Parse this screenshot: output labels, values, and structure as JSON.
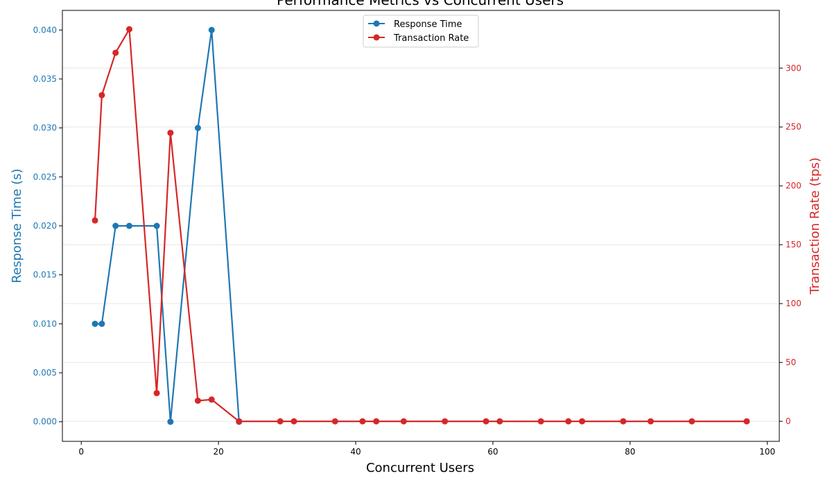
{
  "chart_data": {
    "type": "line",
    "title": "Performance Metrics vs Concurrent Users",
    "xlabel": "Concurrent Users",
    "xlim": [
      -2.75,
      101.75
    ],
    "xticks": [
      0,
      20,
      40,
      60,
      80,
      100
    ],
    "grid": true,
    "legend_placement": "top-center",
    "series": [
      {
        "name": "Response Time",
        "axis": "left",
        "color": "#1f77b4",
        "x": [
          2,
          3,
          5,
          7,
          11,
          13,
          17,
          19,
          23
        ],
        "y": [
          0.01,
          0.01,
          0.02,
          0.02,
          0.02,
          0.0,
          0.03,
          0.04,
          0.0
        ]
      },
      {
        "name": "Transaction Rate",
        "axis": "right",
        "color": "#d62728",
        "x": [
          2,
          3,
          5,
          7,
          11,
          13,
          17,
          19,
          23,
          29,
          31,
          37,
          41,
          43,
          47,
          53,
          59,
          61,
          67,
          71,
          73,
          79,
          83,
          89,
          97
        ],
        "y": [
          170.6,
          277,
          313,
          333,
          24,
          245,
          17.5,
          18.5,
          0,
          0,
          0,
          0,
          0,
          0,
          0,
          0,
          0,
          0,
          0,
          0,
          0,
          0,
          0,
          0,
          0
        ]
      }
    ],
    "y_left": {
      "label": "Response Time (s)",
      "color": "#1f77b4",
      "ylim": [
        -0.002,
        0.042
      ],
      "ticks": [
        0.0,
        0.005,
        0.01,
        0.015,
        0.02,
        0.025,
        0.03,
        0.035,
        0.04
      ],
      "tick_labels": [
        "0.000",
        "0.005",
        "0.010",
        "0.015",
        "0.020",
        "0.025",
        "0.030",
        "0.035",
        "0.040"
      ]
    },
    "y_right": {
      "label": "Transaction Rate (tps)",
      "color": "#d62728",
      "ylim": [
        -17,
        349
      ],
      "ticks": [
        0,
        50,
        100,
        150,
        200,
        250,
        300
      ],
      "tick_labels": [
        "0",
        "50",
        "100",
        "150",
        "200",
        "250",
        "300"
      ]
    }
  }
}
